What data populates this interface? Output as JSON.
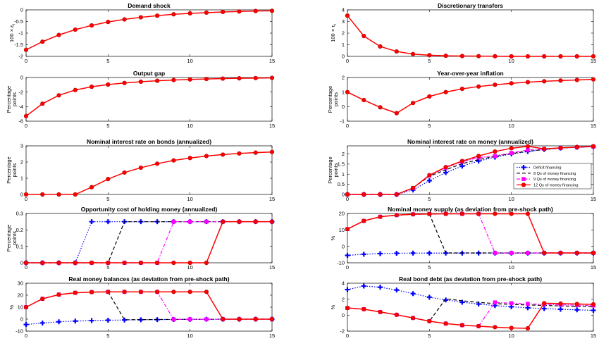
{
  "chart_data": [
    {
      "type": "line",
      "title": "Demand shock",
      "ylabel": [
        "100 × ε",
        "t"
      ],
      "xlim": [
        0,
        15
      ],
      "ylim": [
        -2,
        0
      ],
      "xticks": [
        0,
        5,
        10,
        15
      ],
      "yticks": [
        -2,
        -1.5,
        -1,
        -0.5,
        0
      ],
      "series": [
        {
          "values": [
            -1.72,
            -1.37,
            -1.08,
            -0.85,
            -0.67,
            -0.52,
            -0.41,
            -0.32,
            -0.25,
            -0.19,
            -0.15,
            -0.12,
            -0.09,
            -0.07,
            -0.05,
            -0.04
          ]
        }
      ]
    },
    {
      "type": "line",
      "title": "Discretionary transfers",
      "ylabel": [
        "100 × τ",
        "t"
      ],
      "xlim": [
        0,
        15
      ],
      "ylim": [
        0,
        4
      ],
      "xticks": [
        0,
        5,
        10,
        15
      ],
      "yticks": [
        0,
        1,
        2,
        3,
        4
      ],
      "series": [
        {
          "values": [
            3.5,
            1.75,
            0.85,
            0.42,
            0.2,
            0.1,
            0.05,
            0.03,
            0.02,
            0.01,
            0,
            0,
            0,
            0,
            0,
            0
          ]
        }
      ]
    },
    {
      "type": "line",
      "title": "Output gap",
      "ylabel": [
        "Percentage",
        "points"
      ],
      "xlim": [
        0,
        15
      ],
      "ylim": [
        -6,
        0
      ],
      "xticks": [
        0,
        5,
        10,
        15
      ],
      "yticks": [
        -6,
        -4,
        -2,
        0
      ],
      "series": [
        {
          "values": [
            -5.3,
            -3.6,
            -2.45,
            -1.72,
            -1.27,
            -0.97,
            -0.75,
            -0.58,
            -0.45,
            -0.35,
            -0.27,
            -0.2,
            -0.15,
            -0.11,
            -0.08,
            -0.05
          ]
        }
      ]
    },
    {
      "type": "line",
      "title": "Year-over-year inflation",
      "ylabel": [
        "Percentage",
        "points"
      ],
      "xlim": [
        0,
        15
      ],
      "ylim": [
        -1,
        2
      ],
      "xticks": [
        0,
        5,
        10,
        15
      ],
      "yticks": [
        -1,
        0,
        1,
        2
      ],
      "series": [
        {
          "values": [
            1.0,
            0.45,
            -0.05,
            -0.45,
            0.25,
            0.7,
            1.0,
            1.22,
            1.38,
            1.5,
            1.6,
            1.68,
            1.74,
            1.79,
            1.83,
            1.87
          ]
        }
      ]
    },
    {
      "type": "line",
      "title": "Nominal interest rate on bonds (annualized)",
      "ylabel": [
        "Percentage",
        "points"
      ],
      "xlim": [
        0,
        15
      ],
      "ylim": [
        0,
        3
      ],
      "xticks": [
        0,
        5,
        10,
        15
      ],
      "yticks": [
        0,
        1,
        2,
        3
      ],
      "series": [
        {
          "values": [
            0,
            0,
            0,
            0,
            0.45,
            0.95,
            1.35,
            1.65,
            1.9,
            2.1,
            2.25,
            2.37,
            2.46,
            2.53,
            2.58,
            2.62
          ]
        }
      ]
    },
    {
      "type": "line",
      "title": "Nominal interest rate on money (annualized)",
      "ylabel": [
        "Percentage",
        "points"
      ],
      "xlim": [
        0,
        15
      ],
      "ylim": [
        0,
        2.4
      ],
      "xticks": [
        0,
        5,
        10,
        15
      ],
      "yticks": [
        0,
        0.5,
        1,
        1.5,
        2
      ],
      "legend": {
        "placement": "right",
        "entries": [
          "Deficit financing",
          "8 Qs of money financing",
          "9 Qs of money financing",
          "12 Qs of money financing"
        ]
      },
      "series": [
        {
          "name": "Deficit financing",
          "values": [
            0,
            0,
            0,
            0,
            0.22,
            0.68,
            1.08,
            1.4,
            1.65,
            1.84,
            2.0,
            2.12,
            2.22,
            2.29,
            2.33,
            2.36
          ]
        },
        {
          "name": "8 Qs of money financing",
          "values": [
            0,
            0,
            0,
            0,
            0.32,
            0.9,
            1.22,
            1.52,
            1.72,
            1.88,
            2.02,
            2.13,
            2.22,
            2.29,
            2.33,
            2.36
          ]
        },
        {
          "name": "9 Qs of money financing",
          "values": [
            0,
            0,
            0,
            0,
            0.32,
            0.93,
            1.32,
            1.62,
            1.82,
            1.9,
            2.05,
            2.2,
            2.25,
            2.29,
            2.33,
            2.36
          ]
        },
        {
          "name": "12 Qs of money financing",
          "values": [
            0,
            0,
            0,
            0,
            0.32,
            0.95,
            1.35,
            1.65,
            1.9,
            2.12,
            2.28,
            2.38,
            2.25,
            2.3,
            2.34,
            2.38
          ]
        }
      ]
    },
    {
      "type": "line",
      "title": "Opportunity cost of holding money (annualized)",
      "ylabel": [
        "Percentage",
        "points"
      ],
      "xlim": [
        0,
        15
      ],
      "ylim": [
        0,
        0.3
      ],
      "xticks": [
        0,
        5,
        10,
        15
      ],
      "yticks": [
        0,
        0.1,
        0.2,
        0.3
      ],
      "series": [
        {
          "name": "Deficit financing",
          "values": [
            0,
            0,
            0,
            0,
            0.25,
            0.25,
            0.25,
            0.25,
            0.25,
            0.25,
            0.25,
            0.25,
            0.25,
            0.25,
            0.25,
            0.25
          ]
        },
        {
          "name": "8 Qs of money financing",
          "values": [
            0,
            0,
            0,
            0,
            0,
            0,
            0.25,
            0.25,
            0.25,
            0.25,
            0.25,
            0.25,
            0.25,
            0.25,
            0.25,
            0.25
          ]
        },
        {
          "name": "9 Qs of money financing",
          "values": [
            0,
            0,
            0,
            0,
            0,
            0,
            0,
            0,
            0,
            0.25,
            0.25,
            0.25,
            0.25,
            0.25,
            0.25,
            0.25
          ]
        },
        {
          "name": "12 Qs of money financing",
          "values": [
            0,
            0,
            0,
            0,
            0,
            0,
            0,
            0,
            0,
            0,
            0,
            0,
            0.25,
            0.25,
            0.25,
            0.25
          ]
        }
      ]
    },
    {
      "type": "line",
      "title": "Nominal money supply (as deviation from pre-shock path)",
      "ylabel": [
        "%"
      ],
      "xlim": [
        0,
        15
      ],
      "ylim": [
        -10,
        20
      ],
      "xticks": [
        0,
        5,
        10,
        15
      ],
      "yticks": [
        -10,
        0,
        10,
        20
      ],
      "series": [
        {
          "name": "Deficit financing",
          "values": [
            -5.5,
            -4.8,
            -4.4,
            -4.2,
            -4.1,
            -4.1,
            -4.1,
            -4.1,
            -4.1,
            -4.1,
            -4.1,
            -4.1,
            -4.1,
            -4.1,
            -4.1,
            -4.1
          ]
        },
        {
          "name": "8 Qs of money financing",
          "values": [
            10.5,
            15.5,
            18,
            19,
            19.5,
            19.7,
            -4,
            -4,
            -4,
            -4,
            -4,
            -4,
            -4,
            -4,
            -4,
            -4
          ]
        },
        {
          "name": "9 Qs of money financing",
          "values": [
            10.5,
            15.5,
            18,
            19,
            19.5,
            19.7,
            19.8,
            19.8,
            19.8,
            -4,
            -4,
            -4,
            -4,
            -4,
            -4,
            -4
          ]
        },
        {
          "name": "12 Qs of money financing",
          "values": [
            10.5,
            15.5,
            18,
            19,
            19.5,
            19.7,
            19.8,
            19.8,
            19.8,
            19.8,
            19.8,
            19.8,
            -4,
            -4,
            -4,
            -4
          ]
        }
      ]
    },
    {
      "type": "line",
      "title": "Real money balances (as deviation from pre-shock path)",
      "ylabel": [
        "%"
      ],
      "xlim": [
        0,
        15
      ],
      "ylim": [
        -10,
        30
      ],
      "xticks": [
        0,
        5,
        10,
        15
      ],
      "yticks": [
        -10,
        0,
        10,
        20,
        30
      ],
      "series": [
        {
          "name": "Deficit financing",
          "values": [
            -4.5,
            -3.2,
            -2.2,
            -1.6,
            -1.2,
            -0.9,
            -0.7,
            -0.5,
            -0.4,
            -0.3,
            -0.2,
            -0.1,
            -0.1,
            -0.05,
            0,
            0
          ]
        },
        {
          "name": "8 Qs of money financing",
          "values": [
            10,
            17,
            20.5,
            22,
            22.6,
            22.8,
            -0.5,
            -0.4,
            -0.3,
            -0.2,
            -0.1,
            -0.1,
            0,
            0,
            0,
            0
          ]
        },
        {
          "name": "9 Qs of money financing",
          "values": [
            10,
            17,
            20.5,
            22,
            22.6,
            22.8,
            22.8,
            22.8,
            22.8,
            -0.2,
            -0.1,
            -0.1,
            0,
            0,
            0,
            0
          ]
        },
        {
          "name": "12 Qs of money financing",
          "values": [
            10,
            17,
            20.5,
            22,
            22.6,
            22.8,
            22.8,
            22.8,
            22.8,
            22.8,
            22.8,
            22.8,
            0,
            0,
            0,
            0
          ]
        }
      ]
    },
    {
      "type": "line",
      "title": "Real bond debt (as deviation from pre-shock path)",
      "ylabel": [
        "%"
      ],
      "xlim": [
        0,
        15
      ],
      "ylim": [
        -2,
        4
      ],
      "xticks": [
        0,
        5,
        10,
        15
      ],
      "yticks": [
        -2,
        0,
        2,
        4
      ],
      "series": [
        {
          "name": "Deficit financing",
          "values": [
            3.2,
            3.65,
            3.5,
            3.15,
            2.7,
            2.25,
            1.9,
            1.62,
            1.4,
            1.2,
            1.05,
            0.92,
            0.82,
            0.74,
            0.67,
            0.6
          ]
        },
        {
          "name": "8 Qs of money financing",
          "values": [
            0.9,
            0.75,
            0.4,
            0.05,
            -0.35,
            -0.75,
            2.05,
            1.8,
            1.6,
            1.45,
            1.35,
            1.28,
            1.22,
            1.16,
            1.1,
            1.05
          ]
        },
        {
          "name": "9 Qs of money financing",
          "values": [
            0.9,
            0.75,
            0.4,
            0.05,
            -0.35,
            -0.75,
            -1.05,
            -1.25,
            -1.38,
            1.6,
            1.5,
            1.42,
            1.36,
            1.3,
            1.25,
            1.2
          ]
        },
        {
          "name": "12 Qs of money financing",
          "values": [
            0.9,
            0.75,
            0.4,
            0.05,
            -0.35,
            -0.75,
            -1.05,
            -1.25,
            -1.38,
            -1.5,
            -1.6,
            -1.65,
            1.5,
            1.45,
            1.4,
            1.35
          ]
        }
      ]
    }
  ],
  "styles": {
    "Deficit financing": {
      "color": "#0000ff",
      "dash": "1.5,2",
      "marker": "plus"
    },
    "8 Qs of money financing": {
      "color": "#000000",
      "dash": "5,3",
      "marker": "none"
    },
    "9 Qs of money financing": {
      "color": "#ff00ff",
      "dash": "5,2,1.5,2",
      "marker": "square"
    },
    "12 Qs of money financing": {
      "color": "#ff0000",
      "dash": "",
      "marker": "circle"
    },
    "_default": {
      "color": "#ff0000",
      "dash": "",
      "marker": "circle"
    }
  }
}
